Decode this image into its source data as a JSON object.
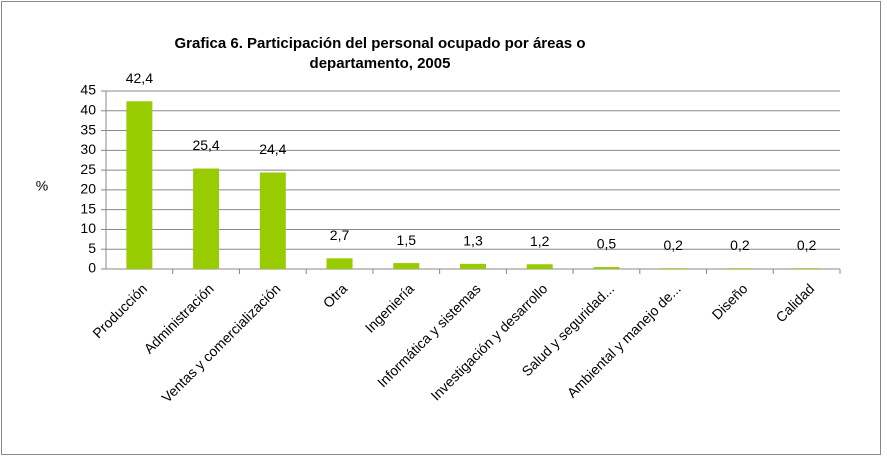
{
  "chart_data": {
    "type": "bar",
    "title": [
      "Grafica 6. Participación del personal ocupado por áreas o",
      "departamento, 2005"
    ],
    "y_label": "%",
    "categories": [
      "Producción",
      "Administración",
      "Ventas y comercialización",
      "Otra",
      "Ingeniería",
      "Informática y sistemas",
      "Investigación y desarrollo",
      "Salud y seguridad...",
      "Ambiental y manejo de...",
      "Diseño",
      "Calidad"
    ],
    "values": [
      42.4,
      25.4,
      24.4,
      2.7,
      1.5,
      1.3,
      1.2,
      0.5,
      0.2,
      0.2,
      0.2
    ],
    "value_labels": [
      "42,4",
      "25,4",
      "24,4",
      "2,7",
      "1,5",
      "1,3",
      "1,2",
      "0,5",
      "0,2",
      "0,2",
      "0,2"
    ],
    "color": "#99cc00",
    "ylim": [
      0,
      45
    ],
    "yticks": [
      0,
      5,
      10,
      15,
      20,
      25,
      30,
      35,
      40,
      45
    ],
    "grid": true
  }
}
